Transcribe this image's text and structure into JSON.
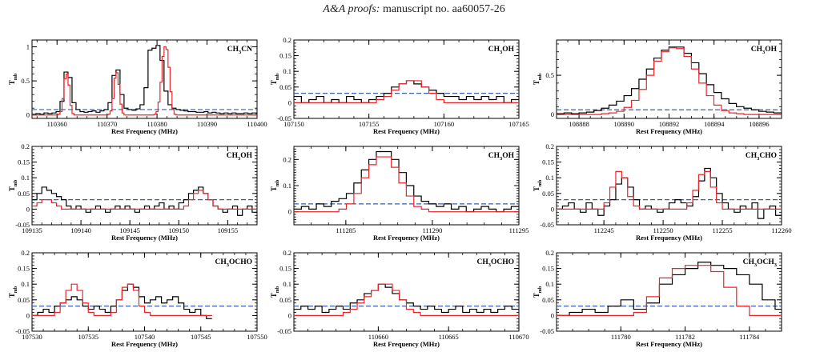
{
  "header": {
    "journal": "A&A proofs:",
    "manuscript": "manuscript no. aa60057-26"
  },
  "colors": {
    "observed": "#000000",
    "model": "#e8262a",
    "threshold": "#3b5fa8"
  },
  "chart_data": [
    {
      "type": "line",
      "label": "CH3CN",
      "label_main": "CH",
      "label_sub": "3",
      "label_rest": "CN",
      "xlabel": "Rest Frequency (MHz)",
      "ylabel": "T",
      "ylabel_sub": "mb",
      "xlim": [
        110355,
        110400
      ],
      "ylim": [
        -0.05,
        1.1
      ],
      "xticks": [
        110360,
        110370,
        110380,
        110390,
        110400
      ],
      "yticks": [
        0,
        0.5,
        1
      ],
      "threshold": 0.08,
      "lines": [
        {
          "center": 110361.5,
          "amp": 0.63,
          "width": 1.0
        },
        {
          "center": 110371.5,
          "amp": 0.65,
          "width": 1.1
        },
        {
          "center": 110380.5,
          "amp": 1.0,
          "width": 1.4
        }
      ],
      "series": [
        {
          "style": "observed",
          "x0": 110355,
          "dx": 0.8,
          "y": [
            0.01,
            0.02,
            0.01,
            0.03,
            0.02,
            0.03,
            0.05,
            0.2,
            0.63,
            0.55,
            0.18,
            0.08,
            0.05,
            0.04,
            0.05,
            0.06,
            0.04,
            0.06,
            0.08,
            0.18,
            0.58,
            0.66,
            0.3,
            0.1,
            0.08,
            0.07,
            0.09,
            0.15,
            0.4,
            0.95,
            0.98,
            1.02,
            0.8,
            0.35,
            0.15,
            0.1,
            0.08,
            0.07,
            0.06,
            0.05,
            0.05,
            0.04,
            0.04,
            0.05,
            0.03,
            0.04,
            0.03,
            0.02,
            0.03,
            0.02,
            0.03,
            0.02,
            0.02,
            0.03,
            0.02,
            0.03,
            0.02
          ]
        },
        {
          "style": "model",
          "x0": 110355,
          "dx": 0.4,
          "y": [
            0.0,
            0.0,
            0.0,
            0.0,
            0.0,
            0.0,
            0.0,
            0.0,
            0.0,
            0.0,
            0.0,
            0.0,
            0.0,
            0.01,
            0.05,
            0.24,
            0.53,
            0.6,
            0.44,
            0.14,
            0.02,
            0.0,
            0.0,
            0.0,
            0.0,
            0.0,
            0.0,
            0.0,
            0.0,
            0.0,
            0.0,
            0.0,
            0.0,
            0.0,
            0.0,
            0.0,
            0.0,
            0.0,
            0.01,
            0.06,
            0.24,
            0.54,
            0.62,
            0.45,
            0.16,
            0.03,
            0.0,
            0.0,
            0.0,
            0.0,
            0.0,
            0.0,
            0.0,
            0.0,
            0.0,
            0.0,
            0.0,
            0.0,
            0.0,
            0.0,
            0.0,
            0.01,
            0.05,
            0.19,
            0.48,
            0.86,
            1.0,
            0.96,
            0.7,
            0.34,
            0.09,
            0.01,
            0.0,
            0.0,
            0.0,
            0.0,
            0.0,
            0.0,
            0.0,
            0.0,
            0.0,
            0.0,
            0.0,
            0.0,
            0.0,
            0.0,
            0.0,
            0.0,
            0.0,
            0.0,
            0.0,
            0.0,
            0.0,
            0.0,
            0.0,
            0.0,
            0.0,
            0.0,
            0.0,
            0.0,
            0.0,
            0.0,
            0.0,
            0.0,
            0.0,
            0.0,
            0.0,
            0.0,
            0.0,
            0.0,
            0.0,
            0.0,
            0.0
          ]
        }
      ]
    },
    {
      "type": "line",
      "label": "CH3OH",
      "label_main": "CH",
      "label_sub": "3",
      "label_rest": "OH",
      "xlabel": "Rest Frequency (MHz)",
      "ylabel": "T",
      "ylabel_sub": "mb",
      "xlim": [
        107150,
        107165
      ],
      "ylim": [
        -0.05,
        0.2
      ],
      "xticks": [
        107150,
        107155,
        107160,
        107165
      ],
      "yticks": [
        -0.05,
        0,
        0.05,
        0.1,
        0.15,
        0.2
      ],
      "threshold": 0.03,
      "series": [
        {
          "style": "observed",
          "x0": 107150,
          "dx": 0.5,
          "y": [
            0.02,
            0.0,
            0.01,
            0.02,
            0.0,
            0.01,
            0.0,
            0.02,
            0.01,
            0.0,
            0.01,
            0.02,
            0.03,
            0.05,
            0.06,
            0.07,
            0.06,
            0.05,
            0.04,
            0.03,
            0.02,
            0.02,
            0.01,
            0.02,
            0.01,
            0.02,
            0.01,
            0.02,
            0.0,
            0.01
          ]
        },
        {
          "style": "model",
          "x0": 107150,
          "dx": 0.5,
          "y": [
            0.0,
            0.0,
            0.0,
            0.0,
            0.0,
            0.0,
            0.0,
            0.0,
            0.0,
            0.0,
            0.0,
            0.01,
            0.02,
            0.04,
            0.06,
            0.07,
            0.07,
            0.05,
            0.03,
            0.01,
            0.0,
            0.0,
            0.0,
            0.0,
            0.0,
            0.0,
            0.0,
            0.0,
            0.0,
            0.0
          ]
        }
      ]
    },
    {
      "type": "line",
      "label": "CH3OH",
      "label_main": "CH",
      "label_sub": "3",
      "label_rest": "OH",
      "xlabel": "Rest Frequency (MHz)",
      "ylabel": "T",
      "ylabel_sub": "mb",
      "xlim": [
        108887,
        108897
      ],
      "ylim": [
        -0.05,
        0.95
      ],
      "xticks": [
        108888,
        108890,
        108892,
        108894,
        108896
      ],
      "yticks": [
        0,
        0.5
      ],
      "threshold": 0.06,
      "series": [
        {
          "style": "observed",
          "x0": 108887,
          "dx": 0.333,
          "y": [
            0.01,
            0.02,
            0.01,
            0.02,
            0.03,
            0.05,
            0.08,
            0.12,
            0.17,
            0.24,
            0.33,
            0.45,
            0.58,
            0.72,
            0.82,
            0.86,
            0.86,
            0.78,
            0.66,
            0.52,
            0.38,
            0.28,
            0.2,
            0.14,
            0.1,
            0.08,
            0.06,
            0.04,
            0.03,
            0.02
          ]
        },
        {
          "style": "model",
          "x0": 108887,
          "dx": 0.333,
          "y": [
            0.0,
            0.0,
            0.0,
            0.0,
            0.0,
            0.0,
            0.01,
            0.02,
            0.04,
            0.09,
            0.18,
            0.32,
            0.5,
            0.68,
            0.8,
            0.85,
            0.84,
            0.74,
            0.58,
            0.4,
            0.24,
            0.12,
            0.05,
            0.02,
            0.01,
            0.0,
            0.0,
            0.0,
            0.0,
            0.0
          ]
        }
      ]
    },
    {
      "type": "line",
      "label": "CH3OH",
      "label_main": "CH",
      "label_sub": "3",
      "label_rest": "OH",
      "xlabel": "Rest Frequency (MHz)",
      "ylabel": "T",
      "ylabel_sub": "mb",
      "xlim": [
        109135,
        109158
      ],
      "ylim": [
        -0.05,
        0.2
      ],
      "xticks": [
        109135,
        109140,
        109145,
        109150,
        109155
      ],
      "yticks": [
        -0.05,
        0,
        0.05,
        0.1,
        0.15,
        0.2
      ],
      "threshold": 0.03,
      "series": [
        {
          "style": "observed",
          "x0": 109135,
          "dx": 0.5,
          "y": [
            0.03,
            0.05,
            0.07,
            0.06,
            0.05,
            0.04,
            0.03,
            0.01,
            0.0,
            0.01,
            0.0,
            -0.01,
            0.0,
            0.01,
            0.0,
            -0.01,
            0.0,
            0.01,
            0.0,
            0.01,
            0.0,
            -0.01,
            0.0,
            0.01,
            0.0,
            0.01,
            0.02,
            0.0,
            0.01,
            0.0,
            0.02,
            0.03,
            0.05,
            0.06,
            0.07,
            0.05,
            0.03,
            0.01,
            0.0,
            -0.01,
            0.0,
            0.01,
            -0.02,
            0.0,
            0.01,
            -0.01,
            0.0
          ]
        },
        {
          "style": "model",
          "x0": 109135,
          "dx": 0.5,
          "y": [
            0.01,
            0.02,
            0.03,
            0.03,
            0.02,
            0.01,
            0.0,
            0.0,
            0.0,
            0.0,
            0.0,
            0.0,
            0.0,
            0.0,
            0.0,
            0.0,
            0.0,
            0.0,
            0.0,
            0.0,
            0.0,
            0.0,
            0.0,
            0.0,
            0.0,
            0.0,
            0.0,
            0.0,
            0.0,
            0.0,
            0.0,
            0.01,
            0.03,
            0.05,
            0.06,
            0.05,
            0.03,
            0.01,
            0.0,
            0.0,
            0.0,
            0.0,
            0.0,
            0.0,
            0.0,
            0.0,
            0.0
          ]
        }
      ]
    },
    {
      "type": "line",
      "label": "CH3OH",
      "label_main": "CH",
      "label_sub": "3",
      "label_rest": "OH",
      "xlabel": "Rest Frequency (MHz)",
      "ylabel": "T",
      "ylabel_sub": "mb",
      "xlim": [
        111282,
        111295
      ],
      "ylim": [
        -0.05,
        0.25
      ],
      "xticks": [
        111285,
        111290,
        111295
      ],
      "yticks": [
        0,
        0.1,
        0.2
      ],
      "threshold": 0.03,
      "series": [
        {
          "style": "observed",
          "x0": 111282,
          "dx": 0.433,
          "y": [
            0.01,
            0.02,
            0.01,
            0.03,
            0.02,
            0.04,
            0.05,
            0.07,
            0.11,
            0.16,
            0.2,
            0.23,
            0.23,
            0.2,
            0.15,
            0.1,
            0.06,
            0.04,
            0.03,
            0.02,
            0.03,
            0.01,
            0.02,
            0.0,
            0.01,
            0.02,
            0.01,
            0.0,
            0.01,
            0.02
          ]
        },
        {
          "style": "model",
          "x0": 111282,
          "dx": 0.433,
          "y": [
            0.0,
            0.0,
            0.0,
            0.0,
            0.0,
            0.0,
            0.01,
            0.03,
            0.07,
            0.13,
            0.18,
            0.21,
            0.21,
            0.17,
            0.11,
            0.06,
            0.02,
            0.01,
            0.0,
            0.0,
            0.0,
            0.0,
            0.0,
            0.0,
            0.0,
            0.0,
            0.0,
            0.0,
            0.0,
            0.0
          ]
        }
      ]
    },
    {
      "type": "line",
      "label": "CH3CHO",
      "label_main": "CH",
      "label_sub": "3",
      "label_rest": "CHO",
      "xlabel": "Rest Frequency (MHz)",
      "ylabel": "T",
      "ylabel_sub": "mb",
      "xlim": [
        112241,
        112260
      ],
      "ylim": [
        -0.05,
        0.2
      ],
      "xticks": [
        112245,
        112250,
        112255,
        112260
      ],
      "yticks": [
        -0.05,
        0,
        0.05,
        0.1,
        0.15,
        0.2
      ],
      "threshold": 0.03,
      "series": [
        {
          "style": "observed",
          "x0": 112241,
          "dx": 0.5,
          "y": [
            0.0,
            0.01,
            0.02,
            0.0,
            -0.01,
            0.02,
            0.0,
            -0.02,
            0.01,
            0.03,
            0.08,
            0.1,
            0.07,
            0.03,
            0.0,
            0.01,
            0.0,
            -0.01,
            0.0,
            0.02,
            0.03,
            0.02,
            0.01,
            0.04,
            0.09,
            0.13,
            0.1,
            0.05,
            0.02,
            0.0,
            -0.01,
            0.01,
            0.0,
            0.02,
            -0.03,
            0.0,
            0.01,
            -0.02
          ]
        },
        {
          "style": "model",
          "x0": 112241,
          "dx": 0.5,
          "y": [
            0.0,
            0.0,
            0.0,
            0.0,
            0.0,
            0.0,
            0.0,
            0.0,
            0.02,
            0.07,
            0.12,
            0.1,
            0.04,
            0.01,
            0.0,
            0.0,
            0.0,
            0.0,
            0.0,
            0.0,
            0.0,
            0.0,
            0.02,
            0.06,
            0.11,
            0.12,
            0.07,
            0.02,
            0.0,
            0.0,
            0.0,
            0.0,
            0.0,
            0.0,
            0.0,
            0.0,
            0.0,
            0.0
          ]
        }
      ]
    },
    {
      "type": "line",
      "label": "CH3OCHO",
      "label_main": "CH",
      "label_sub": "3",
      "label_rest": "OCHO",
      "xlabel": "Rest Frequency (MHz)",
      "ylabel": "T",
      "ylabel_sub": "mb",
      "xlim": [
        107530,
        107550
      ],
      "ylim": [
        -0.05,
        0.2
      ],
      "xticks": [
        107530,
        107535,
        107540,
        107545,
        107550
      ],
      "yticks": [
        -0.05,
        0,
        0.05,
        0.1,
        0.15,
        0.2
      ],
      "threshold": 0.03,
      "series": [
        {
          "style": "observed",
          "x0": 107530,
          "dx": 0.5,
          "y": [
            0.0,
            0.01,
            0.02,
            0.01,
            0.03,
            0.04,
            0.05,
            0.06,
            0.05,
            0.03,
            0.02,
            0.03,
            0.02,
            0.01,
            0.03,
            0.05,
            0.08,
            0.1,
            0.09,
            0.06,
            0.04,
            0.05,
            0.06,
            0.04,
            0.05,
            0.06,
            0.04,
            0.02,
            0.01,
            0.02,
            0.0,
            -0.01
          ]
        },
        {
          "style": "model",
          "x0": 107530,
          "dx": 0.5,
          "y": [
            0.0,
            0.0,
            0.0,
            0.0,
            0.01,
            0.04,
            0.08,
            0.1,
            0.08,
            0.04,
            0.01,
            0.0,
            0.0,
            0.0,
            0.01,
            0.05,
            0.09,
            0.1,
            0.08,
            0.03,
            0.01,
            0.0,
            0.0,
            0.0,
            0.0,
            0.0,
            0.0,
            0.0,
            0.0,
            0.0,
            0.0,
            0.0
          ]
        }
      ]
    },
    {
      "type": "line",
      "label": "CH3OCHO",
      "label_main": "CH",
      "label_sub": "3",
      "label_rest": "OCHO",
      "xlabel": "Rest Frequency (MHz)",
      "ylabel": "T",
      "ylabel_sub": "mb",
      "xlim": [
        110654,
        110670
      ],
      "ylim": [
        -0.05,
        0.2
      ],
      "xticks": [
        110660,
        110665,
        110670
      ],
      "yticks": [
        -0.05,
        0,
        0.05,
        0.1,
        0.15,
        0.2
      ],
      "threshold": 0.03,
      "series": [
        {
          "style": "observed",
          "x0": 110654,
          "dx": 0.5,
          "y": [
            0.02,
            0.03,
            0.02,
            0.03,
            0.01,
            0.02,
            0.03,
            0.02,
            0.04,
            0.05,
            0.07,
            0.08,
            0.1,
            0.09,
            0.07,
            0.05,
            0.04,
            0.03,
            0.02,
            0.03,
            0.02,
            0.01,
            0.02,
            0.03,
            0.01,
            0.02,
            0.01,
            0.02,
            0.01,
            0.02,
            0.03,
            0.02
          ]
        },
        {
          "style": "model",
          "x0": 110654,
          "dx": 0.5,
          "y": [
            0.0,
            0.0,
            0.0,
            0.0,
            0.0,
            0.0,
            0.0,
            0.01,
            0.02,
            0.04,
            0.06,
            0.08,
            0.1,
            0.1,
            0.08,
            0.05,
            0.02,
            0.01,
            0.0,
            0.0,
            0.0,
            0.0,
            0.0,
            0.0,
            0.0,
            0.0,
            0.0,
            0.0,
            0.0,
            0.0,
            0.0,
            0.0
          ]
        }
      ]
    },
    {
      "type": "line",
      "label": "CH3OCH3",
      "label_main": "CH",
      "label_sub": "3",
      "label_rest": "OCH",
      "label_sub2": "3",
      "xlabel": "Rest Frequency (MHz)",
      "ylabel": "T",
      "ylabel_sub": "mb",
      "xlim": [
        111778,
        111785
      ],
      "ylim": [
        -0.05,
        0.2
      ],
      "xticks": [
        111780,
        111782,
        111784
      ],
      "yticks": [
        -0.05,
        0,
        0.05,
        0.1,
        0.15,
        0.2
      ],
      "threshold": 0.03,
      "series": [
        {
          "style": "observed",
          "x0": 111778,
          "dx": 0.4,
          "y": [
            0.0,
            0.01,
            0.02,
            0.01,
            0.03,
            0.05,
            0.02,
            0.04,
            0.1,
            0.13,
            0.15,
            0.17,
            0.16,
            0.15,
            0.13,
            0.1,
            0.05,
            0.02,
            0.0,
            -0.01
          ]
        },
        {
          "style": "model",
          "x0": 111778,
          "dx": 0.4,
          "y": [
            0.0,
            0.0,
            0.0,
            0.0,
            0.0,
            0.0,
            0.01,
            0.06,
            0.12,
            0.15,
            0.16,
            0.16,
            0.14,
            0.09,
            0.03,
            0.0,
            0.0,
            0.0,
            0.0,
            0.0
          ]
        }
      ]
    }
  ]
}
